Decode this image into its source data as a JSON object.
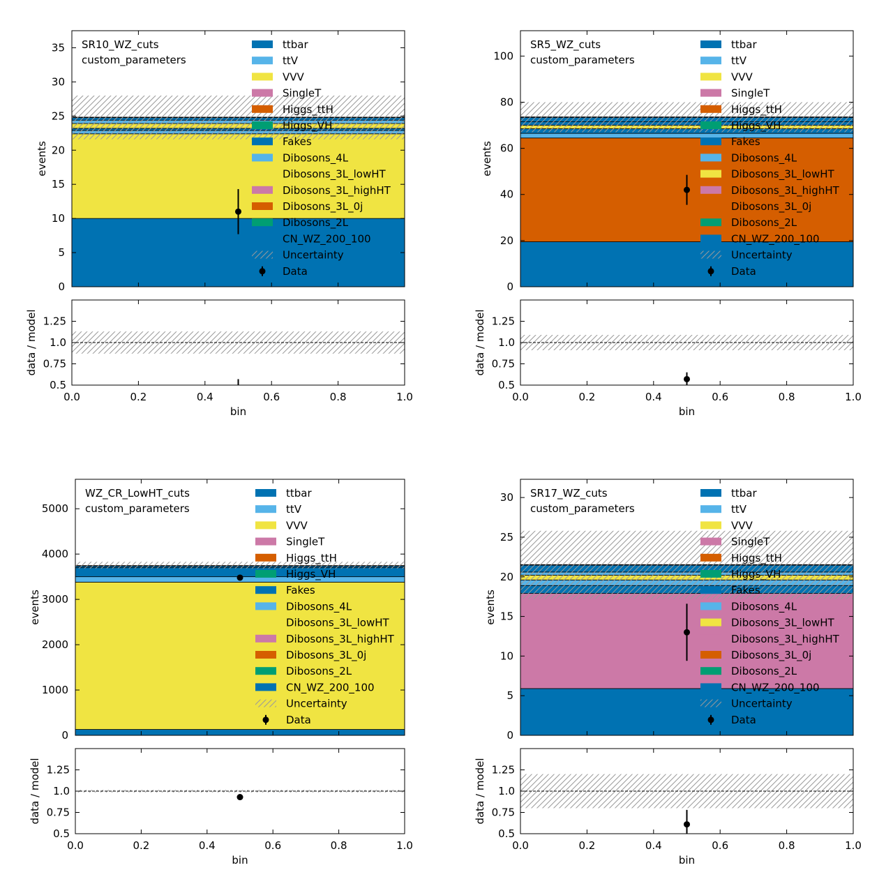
{
  "colors": {
    "ttbar": "#0072B2",
    "ttV": "#56B4E9",
    "VVV": "#F0E442",
    "SingleT": "#CC79A7",
    "Higgs_ttH": "#D55E00",
    "Higgs_VH": "#009E73",
    "Fakes": "#0072B2",
    "Dibosons_4L": "#56B4E9",
    "Dibosons_3L_lowHT": "#F0E442",
    "Dibosons_3L_highHT": "#CC79A7",
    "Dibosons_3L_0j": "#D55E00",
    "Dibosons_2L": "#009E73",
    "CN_WZ_200_100": "#0072B2",
    "hatch": "#9a9a9a"
  },
  "chart_data": [
    {
      "type": "bar",
      "region": "SR10_WZ_cuts",
      "subtitle": "custom_parameters",
      "xlabel": "bin",
      "ylabel": "events",
      "ratio_ylabel": "data / model",
      "xlim": [
        0.0,
        1.0
      ],
      "ylim": [
        0,
        37.5
      ],
      "yticks": [
        0,
        5,
        10,
        15,
        20,
        25,
        30,
        35
      ],
      "ytick_labels": [
        "0",
        "5",
        "10",
        "15",
        "20",
        "25",
        "30",
        "35"
      ],
      "ratio_ylim": [
        0.5,
        1.5
      ],
      "ratio_yticks": [
        0.5,
        0.75,
        1.0,
        1.25
      ],
      "ratio_ytick_labels": [
        "0.5",
        "0.75",
        "1.0",
        "1.25"
      ],
      "xticks": [
        0.0,
        0.2,
        0.4,
        0.6,
        0.8,
        1.0
      ],
      "xtick_labels": [
        "0.0",
        "0.2",
        "0.4",
        "0.6",
        "0.8",
        "1.0"
      ],
      "stack": [
        {
          "name": "Dibosons_3L_0j",
          "value": 10.0,
          "color": "#0072B2"
        },
        {
          "name": "Dibosons_3L_highHT",
          "value": 12.4,
          "color": "#F0E442"
        },
        {
          "name": "Dibosons_3L_lowHT",
          "value": 0.5,
          "color": "#56B4E9"
        },
        {
          "name": "Fakes",
          "value": 0.3,
          "color": "#0072B2"
        },
        {
          "name": "VVV",
          "value": 0.7,
          "color": "#F0E442"
        },
        {
          "name": "ttV",
          "value": 0.5,
          "color": "#56B4E9"
        },
        {
          "name": "ttbar",
          "value": 0.4,
          "color": "#0072B2"
        }
      ],
      "total": 24.8,
      "uncertainty": [
        21.6,
        28.0
      ],
      "data": {
        "x": 0.5,
        "y": 11.0,
        "yerr": 3.3
      },
      "ratio": {
        "y": 0.44,
        "yerr": 0.13,
        "band": [
          0.87,
          1.13
        ]
      }
    },
    {
      "type": "bar",
      "region": "SR5_WZ_cuts",
      "subtitle": "custom_parameters",
      "xlabel": "bin",
      "ylabel": "events",
      "ratio_ylabel": "data / model",
      "xlim": [
        0.0,
        1.0
      ],
      "ylim": [
        0,
        111
      ],
      "yticks": [
        0,
        20,
        40,
        60,
        80,
        100
      ],
      "ytick_labels": [
        "0",
        "20",
        "40",
        "60",
        "80",
        "100"
      ],
      "ratio_ylim": [
        0.5,
        1.5
      ],
      "ratio_yticks": [
        0.5,
        0.75,
        1.0,
        1.25
      ],
      "ratio_ytick_labels": [
        "0.5",
        "0.75",
        "1.0",
        "1.25"
      ],
      "xticks": [
        0.0,
        0.2,
        0.4,
        0.6,
        0.8,
        1.0
      ],
      "xtick_labels": [
        "0.0",
        "0.2",
        "0.4",
        "0.6",
        "0.8",
        "1.0"
      ],
      "stack": [
        {
          "name": "Dibosons_3L_0j",
          "value": 19.5,
          "color": "#0072B2"
        },
        {
          "name": "Dibosons_3L_highHT",
          "value": 45.0,
          "color": "#D55E00"
        },
        {
          "name": "Dibosons_3L_lowHT",
          "value": 2.0,
          "color": "#56B4E9"
        },
        {
          "name": "Fakes",
          "value": 2.0,
          "color": "#0072B2"
        },
        {
          "name": "VVV",
          "value": 1.5,
          "color": "#F0E442"
        },
        {
          "name": "ttV",
          "value": 1.5,
          "color": "#0072B2"
        },
        {
          "name": "ttbar",
          "value": 2.0,
          "color": "#0072B2"
        }
      ],
      "total": 73.5,
      "uncertainty": [
        67.0,
        80.0
      ],
      "data": {
        "x": 0.5,
        "y": 42.0,
        "yerr": 6.5
      },
      "ratio": {
        "y": 0.57,
        "yerr": 0.08,
        "band": [
          0.91,
          1.09
        ]
      }
    },
    {
      "type": "bar",
      "region": "WZ_CR_LowHT_cuts",
      "subtitle": "custom_parameters",
      "xlabel": "bin",
      "ylabel": "events",
      "ratio_ylabel": "data / model",
      "xlim": [
        0.0,
        1.0
      ],
      "ylim": [
        0,
        5650
      ],
      "yticks": [
        0,
        1000,
        2000,
        3000,
        4000,
        5000
      ],
      "ytick_labels": [
        "0",
        "1000",
        "2000",
        "3000",
        "4000",
        "5000"
      ],
      "ratio_ylim": [
        0.5,
        1.5
      ],
      "ratio_yticks": [
        0.5,
        0.75,
        1.0,
        1.25
      ],
      "ratio_ytick_labels": [
        "0.5",
        "0.75",
        "1.0",
        "1.25"
      ],
      "xticks": [
        0.0,
        0.2,
        0.4,
        0.6,
        0.8,
        1.0
      ],
      "xtick_labels": [
        "0.0",
        "0.2",
        "0.4",
        "0.6",
        "0.8",
        "1.0"
      ],
      "stack": [
        {
          "name": "Dibosons_3L_0j",
          "value": 130,
          "color": "#0072B2"
        },
        {
          "name": "Dibosons_3L_highHT",
          "value": 3250,
          "color": "#F0E442"
        },
        {
          "name": "Dibosons_3L_lowHT",
          "value": 120,
          "color": "#56B4E9"
        },
        {
          "name": "Fakes",
          "value": 200,
          "color": "#0072B2"
        },
        {
          "name": "ttbar",
          "value": 40,
          "color": "#0072B2"
        }
      ],
      "total": 3740,
      "uncertainty": [
        3680,
        3830
      ],
      "data": {
        "x": 0.5,
        "y": 3480,
        "yerr": 60
      },
      "ratio": {
        "y": 0.93,
        "yerr": 0.01,
        "band": [
          0.985,
          1.015
        ]
      }
    },
    {
      "type": "bar",
      "region": "SR17_WZ_cuts",
      "subtitle": "custom_parameters",
      "xlabel": "bin",
      "ylabel": "events",
      "ratio_ylabel": "data / model",
      "xlim": [
        0.0,
        1.0
      ],
      "ylim": [
        0,
        32.3
      ],
      "yticks": [
        0,
        5,
        10,
        15,
        20,
        25,
        30
      ],
      "ytick_labels": [
        "0",
        "5",
        "10",
        "15",
        "20",
        "25",
        "30"
      ],
      "ratio_ylim": [
        0.5,
        1.5
      ],
      "ratio_yticks": [
        0.5,
        0.75,
        1.0,
        1.25
      ],
      "ratio_ytick_labels": [
        "0.5",
        "0.75",
        "1.0",
        "1.25"
      ],
      "xticks": [
        0.0,
        0.2,
        0.4,
        0.6,
        0.8,
        1.0
      ],
      "xtick_labels": [
        "0.0",
        "0.2",
        "0.4",
        "0.6",
        "0.8",
        "1.0"
      ],
      "stack": [
        {
          "name": "Dibosons_3L_0j",
          "value": 5.9,
          "color": "#0072B2"
        },
        {
          "name": "Dibosons_3L_highHT",
          "value": 12.0,
          "color": "#CC79A7"
        },
        {
          "name": "Dibosons_3L_lowHT",
          "value": 1.0,
          "color": "#0072B2"
        },
        {
          "name": "Fakes",
          "value": 0.7,
          "color": "#56B4E9"
        },
        {
          "name": "VVV",
          "value": 0.6,
          "color": "#F0E442"
        },
        {
          "name": "ttV",
          "value": 0.4,
          "color": "#56B4E9"
        },
        {
          "name": "ttbar",
          "value": 0.9,
          "color": "#0072B2"
        }
      ],
      "total": 21.5,
      "uncertainty": [
        17.2,
        25.8
      ],
      "data": {
        "x": 0.5,
        "y": 13.0,
        "yerr": 3.6
      },
      "ratio": {
        "y": 0.61,
        "yerr": 0.17,
        "band": [
          0.8,
          1.2
        ]
      }
    }
  ],
  "legend": {
    "entries": [
      {
        "label": "ttbar",
        "color": "#0072B2",
        "kind": "patch"
      },
      {
        "label": "ttV",
        "color": "#56B4E9",
        "kind": "patch"
      },
      {
        "label": "VVV",
        "color": "#F0E442",
        "kind": "patch"
      },
      {
        "label": "SingleT",
        "color": "#CC79A7",
        "kind": "patch"
      },
      {
        "label": "Higgs_ttH",
        "color": "#D55E00",
        "kind": "patch"
      },
      {
        "label": "Higgs_VH",
        "color": "#009E73",
        "kind": "patch"
      },
      {
        "label": "Fakes",
        "color": "#0072B2",
        "kind": "patch"
      },
      {
        "label": "Dibosons_4L",
        "color": "#56B4E9",
        "kind": "patch"
      },
      {
        "label": "Dibosons_3L_lowHT",
        "color": "#F0E442",
        "kind": "patch"
      },
      {
        "label": "Dibosons_3L_highHT",
        "color": "#CC79A7",
        "kind": "patch"
      },
      {
        "label": "Dibosons_3L_0j",
        "color": "#D55E00",
        "kind": "patch"
      },
      {
        "label": "Dibosons_2L",
        "color": "#009E73",
        "kind": "patch"
      },
      {
        "label": "CN_WZ_200_100",
        "color": "#0072B2",
        "kind": "patch"
      },
      {
        "label": "Uncertainty",
        "color": "#9a9a9a",
        "kind": "hatch"
      },
      {
        "label": "Data",
        "color": "#000000",
        "kind": "marker"
      }
    ]
  }
}
